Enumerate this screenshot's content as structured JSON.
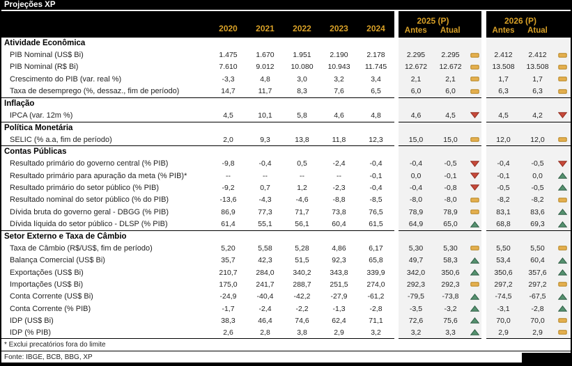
{
  "title": "Projeções XP",
  "colors": {
    "accent_gold": "#D9A127",
    "trend_up_green": "#55916F",
    "trend_up_border": "#2F5E45",
    "trend_down_red": "#C7493A",
    "trend_down_border": "#922D20",
    "trend_flat_gold": "#E4AF4E",
    "trend_flat_border": "#B5831F",
    "projection_bg": "#F2F2F2"
  },
  "table": {
    "columns": [
      "2020",
      "2021",
      "2022",
      "2023",
      "2024"
    ],
    "proj_groups": [
      {
        "label": "2025 (P)",
        "antes": "Antes",
        "atual": "Atual"
      },
      {
        "label": "2026 (P)",
        "antes": "Antes",
        "atual": "Atual"
      }
    ],
    "trend_legend": {
      "up": "revised upward",
      "down": "revised downward",
      "flat": "unchanged"
    },
    "sections": [
      {
        "name": "Atividade Econômica",
        "rows": [
          {
            "label": "PIB Nominal (US$ Bi)",
            "values": [
              "1.475",
              "1.670",
              "1.951",
              "2.190",
              "2.178"
            ],
            "p25": [
              "2.295",
              "2.295",
              "flat"
            ],
            "p26": [
              "2.412",
              "2.412",
              "flat"
            ]
          },
          {
            "label": "PIB Nominal (R$ Bi)",
            "values": [
              "7.610",
              "9.012",
              "10.080",
              "10.943",
              "11.745"
            ],
            "p25": [
              "12.672",
              "12.672",
              "flat"
            ],
            "p26": [
              "13.508",
              "13.508",
              "flat"
            ]
          },
          {
            "label": "Crescimento do PIB (var. real %)",
            "values": [
              "-3,3",
              "4,8",
              "3,0",
              "3,2",
              "3,4"
            ],
            "p25": [
              "2,1",
              "2,1",
              "flat"
            ],
            "p26": [
              "1,7",
              "1,7",
              "flat"
            ]
          },
          {
            "label": "Taxa de desemprego (%, dessaz., fim de período)",
            "values": [
              "14,7",
              "11,7",
              "8,3",
              "7,6",
              "6,5"
            ],
            "p25": [
              "6,0",
              "6,0",
              "flat"
            ],
            "p26": [
              "6,3",
              "6,3",
              "flat"
            ]
          }
        ]
      },
      {
        "name": "Inflação",
        "rows": [
          {
            "label": "IPCA (var. 12m %)",
            "values": [
              "4,5",
              "10,1",
              "5,8",
              "4,6",
              "4,8"
            ],
            "p25": [
              "4,6",
              "4,5",
              "down"
            ],
            "p26": [
              "4,5",
              "4,2",
              "down"
            ]
          }
        ]
      },
      {
        "name": "Política Monetária",
        "rows": [
          {
            "label": "SELIC (% a.a, fim de período)",
            "values": [
              "2,0",
              "9,3",
              "13,8",
              "11,8",
              "12,3"
            ],
            "p25": [
              "15,0",
              "15,0",
              "flat"
            ],
            "p26": [
              "12,0",
              "12,0",
              "flat"
            ]
          }
        ]
      },
      {
        "name": "Contas Públicas",
        "rows": [
          {
            "label": "Resultado primário do governo central (% PIB)",
            "values": [
              "-9,8",
              "-0,4",
              "0,5",
              "-2,4",
              "-0,4"
            ],
            "p25": [
              "-0,4",
              "-0,5",
              "down"
            ],
            "p26": [
              "-0,4",
              "-0,5",
              "down"
            ]
          },
          {
            "label": "Resultado primário para apuração da meta (% PIB)*",
            "values": [
              "--",
              "--",
              "--",
              "--",
              "-0,1"
            ],
            "p25": [
              "0,0",
              "-0,1",
              "down"
            ],
            "p26": [
              "-0,1",
              "0,0",
              "up"
            ]
          },
          {
            "label": "Resultado primário do setor público (% PIB)",
            "values": [
              "-9,2",
              "0,7",
              "1,2",
              "-2,3",
              "-0,4"
            ],
            "p25": [
              "-0,4",
              "-0,8",
              "down"
            ],
            "p26": [
              "-0,5",
              "-0,5",
              "up"
            ]
          },
          {
            "label": "Resultado nominal do setor público (% do PIB)",
            "values": [
              "-13,6",
              "-4,3",
              "-4,6",
              "-8,8",
              "-8,5"
            ],
            "p25": [
              "-8,0",
              "-8,0",
              "flat"
            ],
            "p26": [
              "-8,2",
              "-8,2",
              "flat"
            ]
          },
          {
            "label": "Dívida bruta do governo geral - DBGG (% PIB)",
            "values": [
              "86,9",
              "77,3",
              "71,7",
              "73,8",
              "76,5"
            ],
            "p25": [
              "78,9",
              "78,9",
              "flat"
            ],
            "p26": [
              "83,1",
              "83,6",
              "up"
            ]
          },
          {
            "label": "Dívida líquida do setor público - DLSP (% PIB)",
            "values": [
              "61,4",
              "55,1",
              "56,1",
              "60,4",
              "61,5"
            ],
            "p25": [
              "64,9",
              "65,0",
              "up"
            ],
            "p26": [
              "68,8",
              "69,3",
              "up"
            ]
          }
        ]
      },
      {
        "name": "Setor Externo e Taxa de Câmbio",
        "rows": [
          {
            "label": "Taxa de Câmbio (R$/US$, fim de período)",
            "values": [
              "5,20",
              "5,58",
              "5,28",
              "4,86",
              "6,17"
            ],
            "p25": [
              "5,30",
              "5,30",
              "flat"
            ],
            "p26": [
              "5,50",
              "5,50",
              "flat"
            ]
          },
          {
            "label": "Balança Comercial (US$ Bi)",
            "values": [
              "35,7",
              "42,3",
              "51,5",
              "92,3",
              "65,8"
            ],
            "p25": [
              "49,7",
              "58,3",
              "up"
            ],
            "p26": [
              "53,4",
              "60,4",
              "up"
            ]
          },
          {
            "label": "Exportações (US$ Bi)",
            "values": [
              "210,7",
              "284,0",
              "340,2",
              "343,8",
              "339,9"
            ],
            "p25": [
              "342,0",
              "350,6",
              "up"
            ],
            "p26": [
              "350,6",
              "357,6",
              "up"
            ]
          },
          {
            "label": "Importações (US$ Bi)",
            "values": [
              "175,0",
              "241,7",
              "288,7",
              "251,5",
              "274,0"
            ],
            "p25": [
              "292,3",
              "292,3",
              "flat"
            ],
            "p26": [
              "297,2",
              "297,2",
              "flat"
            ]
          },
          {
            "label": "Conta Corrente (US$ Bi)",
            "values": [
              "-24,9",
              "-40,4",
              "-42,2",
              "-27,9",
              "-61,2"
            ],
            "p25": [
              "-79,5",
              "-73,8",
              "up"
            ],
            "p26": [
              "-74,5",
              "-67,5",
              "up"
            ]
          },
          {
            "label": "Conta Corrente (% PIB)",
            "values": [
              "-1,7",
              "-2,4",
              "-2,2",
              "-1,3",
              "-2,8"
            ],
            "p25": [
              "-3,5",
              "-3,2",
              "up"
            ],
            "p26": [
              "-3,1",
              "-2,8",
              "up"
            ]
          },
          {
            "label": "IDP (US$ Bi)",
            "values": [
              "38,3",
              "46,4",
              "74,6",
              "62,4",
              "71,1"
            ],
            "p25": [
              "72,6",
              "75,6",
              "up"
            ],
            "p26": [
              "70,0",
              "70,0",
              "flat"
            ]
          },
          {
            "label": "IDP (% PIB)",
            "values": [
              "2,6",
              "2,8",
              "3,8",
              "2,9",
              "3,2"
            ],
            "p25": [
              "3,2",
              "3,3",
              "up"
            ],
            "p26": [
              "2,9",
              "2,9",
              "flat"
            ]
          }
        ]
      }
    ]
  },
  "footnotes": [
    "* Exclui precatórios fora do limite",
    "Fonte: IBGE, BCB, BBG, XP"
  ]
}
